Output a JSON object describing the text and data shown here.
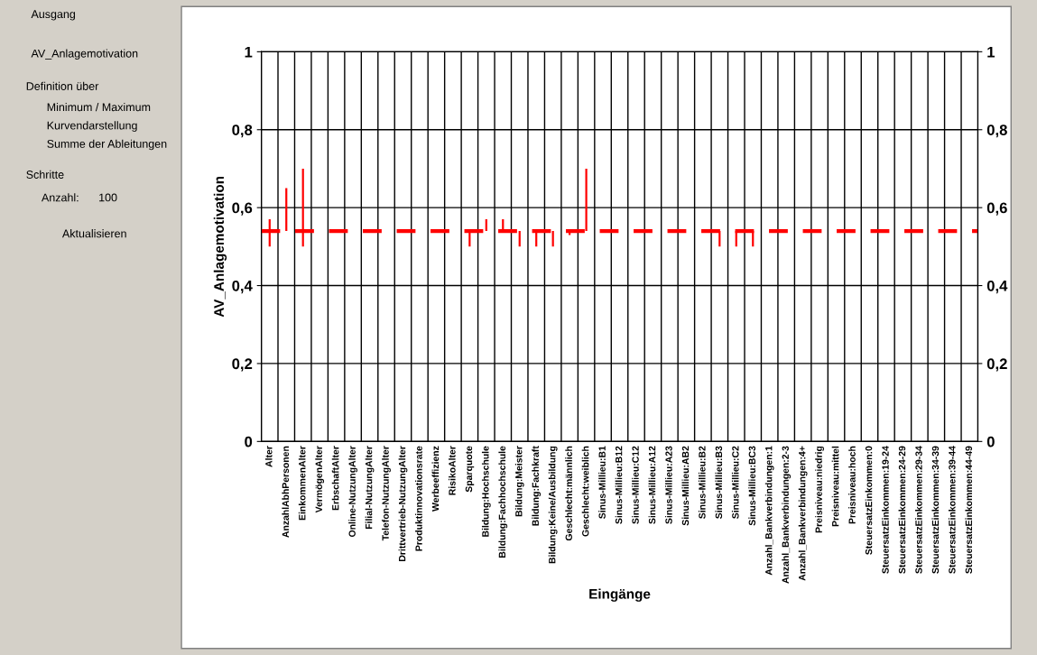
{
  "chart_data": {
    "type": "bar",
    "xlabel": "Eingänge",
    "ylabel": "AV_Anlagemotivation",
    "categories": [
      "Alter",
      "AnzahlAbhPersonen",
      "EinkommenAlter",
      "VermögenAlter",
      "ErbschaftAlter",
      "Online-NutzungAlter",
      "Filial-NutzungAlter",
      "Telefon-NutzungAlter",
      "Drittvertrieb-NutzungAlter",
      "Produktinnovationsrate",
      "Werbeeffizienz",
      "RisikoAlter",
      "Sparquote",
      "Bildung:Hochschule",
      "Bildung:Fachhochschule",
      "Bildung:Meister",
      "Bildung:Fachkraft",
      "Bildung:Keine/Ausbildung",
      "Geschlecht:männlich",
      "Geschlecht:weiblich",
      "Sinus-Millieu:B1",
      "Sinus-Millieu:B12",
      "Sinus-Millieu:C12",
      "Sinus-Millieu:A12",
      "Sinus-Millieu:A23",
      "Sinus-Millieu:AB2",
      "Sinus-Millieu:B2",
      "Sinus-Millieu:B3",
      "Sinus-Millieu:C2",
      "Sinus-Millieu:BC3",
      "Anzahl_Bankverbindungen:1",
      "Anzahl_Bankverbindungen:2-3",
      "Anzahl_Bankverbindungen:4+",
      "Preisniveau:niedrig",
      "Preisniveau:mittel",
      "Preisniveau:hoch",
      "SteuersatzEinkommen:0",
      "SteuersatzEinkommen:19-24",
      "SteuersatzEinkommen:24-29",
      "SteuersatzEinkommen:29-34",
      "SteuersatzEinkommen:34-39",
      "SteuersatzEinkommen:39-44",
      "SteuersatzEinkommen:44-49"
    ],
    "base": [
      0.5,
      0.54,
      0.5,
      null,
      null,
      null,
      null,
      null,
      null,
      null,
      null,
      null,
      0.5,
      0.54,
      0.54,
      0.5,
      0.5,
      0.5,
      0.53,
      0.54,
      null,
      null,
      null,
      null,
      null,
      null,
      null,
      0.5,
      0.5,
      0.5,
      null,
      null,
      null,
      null,
      null,
      null,
      null,
      null,
      null,
      null,
      null,
      null,
      null
    ],
    "values": [
      0.07,
      0.11,
      0.2,
      null,
      null,
      null,
      null,
      null,
      null,
      null,
      null,
      null,
      0.04,
      0.03,
      0.03,
      0.04,
      0.04,
      0.04,
      0.01,
      0.16,
      null,
      null,
      null,
      null,
      null,
      null,
      null,
      0.04,
      0.04,
      0.04,
      null,
      null,
      null,
      null,
      null,
      null,
      null,
      null,
      null,
      null,
      null,
      null,
      null
    ],
    "color": "#ff0000",
    "ylim": [
      0,
      1
    ],
    "yticks": [
      {
        "value": 0,
        "label": "0"
      },
      {
        "value": 0.2,
        "label": "0,2"
      },
      {
        "value": 0.4,
        "label": "0,4"
      },
      {
        "value": 0.6,
        "label": "0,6"
      },
      {
        "value": 0.8,
        "label": "0,8"
      },
      {
        "value": 1,
        "label": "1"
      }
    ],
    "y2lim": [
      0,
      1
    ],
    "y2ticks": [
      {
        "value": 0,
        "label": "0"
      },
      {
        "value": 0.2,
        "label": "0,2"
      },
      {
        "value": 0.4,
        "label": "0,4"
      },
      {
        "value": 0.6,
        "label": "0,6"
      },
      {
        "value": 0.8,
        "label": "0,8"
      },
      {
        "value": 1,
        "label": "1"
      }
    ],
    "ref_lines": [
      {
        "axis": "y",
        "value": 0.54,
        "color": "#ff0000",
        "line_style": "dashed"
      }
    ],
    "grid": true,
    "annotations": [
      "Ausgang",
      "AV_Anlagemotivation",
      "Definition über",
      "Minimum / Maximum",
      "Kurvendarstellung",
      "Summe der Ableitungen",
      "Schritte",
      "Anzahl:",
      "100",
      "Aktualisieren"
    ]
  }
}
